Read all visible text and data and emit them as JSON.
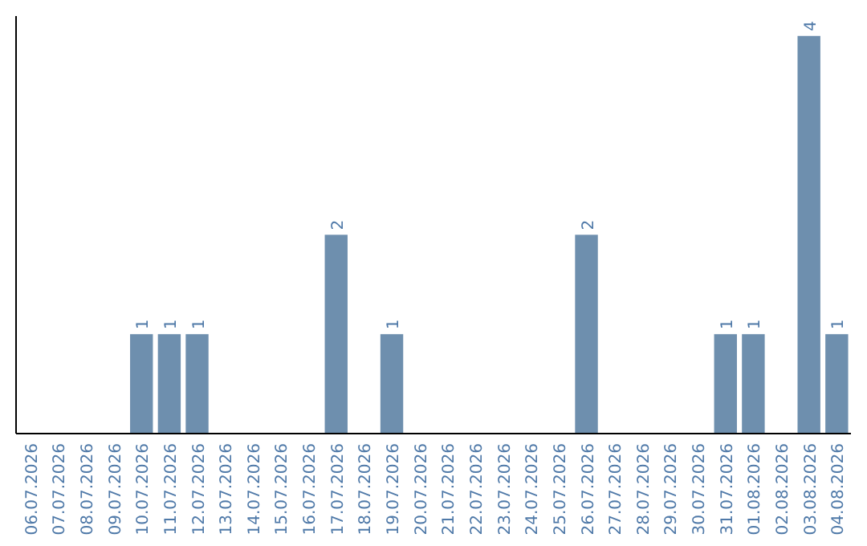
{
  "chart_data": {
    "type": "bar",
    "categories": [
      "06.07.2026",
      "07.07.2026",
      "08.07.2026",
      "09.07.2026",
      "10.07.2026",
      "11.07.2026",
      "12.07.2026",
      "13.07.2026",
      "14.07.2026",
      "15.07.2026",
      "16.07.2026",
      "17.07.2026",
      "18.07.2026",
      "19.07.2026",
      "20.07.2026",
      "21.07.2026",
      "22.07.2026",
      "23.07.2026",
      "24.07.2026",
      "25.07.2026",
      "26.07.2026",
      "27.07.2026",
      "28.07.2026",
      "29.07.2026",
      "30.07.2026",
      "31.07.2026",
      "01.08.2026",
      "02.08.2026",
      "03.08.2026",
      "04.08.2026"
    ],
    "values": [
      0,
      0,
      0,
      0,
      1,
      1,
      1,
      0,
      0,
      0,
      0,
      2,
      0,
      1,
      0,
      0,
      0,
      0,
      0,
      0,
      2,
      0,
      0,
      0,
      0,
      1,
      1,
      0,
      4,
      1
    ],
    "value_labels": [
      null,
      null,
      null,
      null,
      "1",
      "1",
      "1",
      null,
      null,
      null,
      null,
      "2",
      null,
      "1",
      null,
      null,
      null,
      null,
      null,
      null,
      "2",
      null,
      null,
      null,
      null,
      "1",
      "1",
      null,
      "4",
      "1"
    ],
    "color": "#6e8fae",
    "ylim": [
      0,
      4.2
    ],
    "tick_labels": "x"
  }
}
